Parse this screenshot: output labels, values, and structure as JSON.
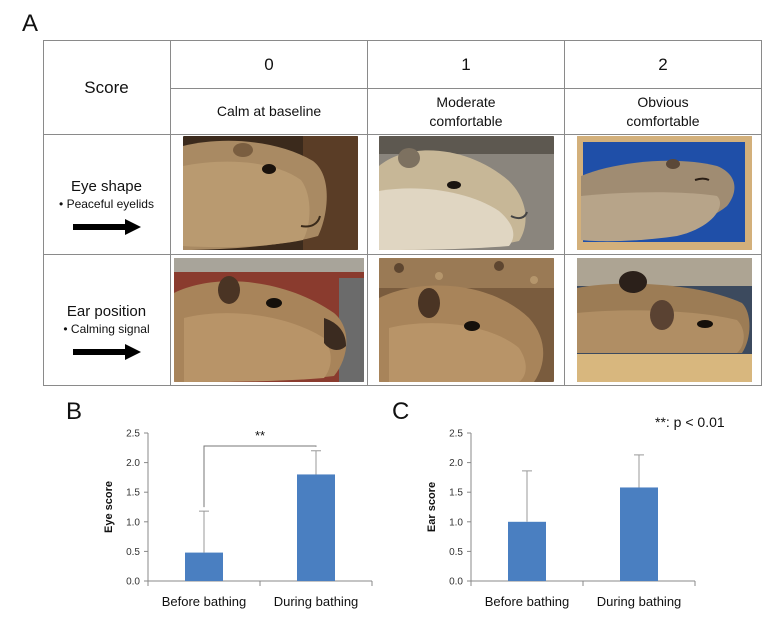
{
  "panels": {
    "a": "A",
    "b": "B",
    "c": "C"
  },
  "table": {
    "score_header": "Score",
    "columns": [
      {
        "score": "0",
        "desc_line1": "Calm at baseline",
        "desc_line2": ""
      },
      {
        "score": "1",
        "desc_line1": "Moderate",
        "desc_line2": "comfortable"
      },
      {
        "score": "2",
        "desc_line1": "Obvious",
        "desc_line2": "comfortable"
      }
    ],
    "rows": [
      {
        "title": "Eye shape",
        "sub": "• Peaceful eyelids"
      },
      {
        "title": "Ear position",
        "sub": "• Calming signal"
      }
    ]
  },
  "significance_note": "**: p < 0.01",
  "chart_data": [
    {
      "type": "bar",
      "panel": "B",
      "categories": [
        "Before bathing",
        "During bathing"
      ],
      "values": [
        0.48,
        1.8
      ],
      "error_upper": [
        0.7,
        0.4
      ],
      "ylabel": "Eye score",
      "ylim": [
        0,
        2.5
      ],
      "yticks": [
        "0.0",
        "0.5",
        "1.0",
        "1.5",
        "2.0",
        "2.5"
      ],
      "annotation": "**",
      "bar_color": "#4a7fc1",
      "grid": false
    },
    {
      "type": "bar",
      "panel": "C",
      "categories": [
        "Before bathing",
        "During bathing"
      ],
      "values": [
        1.0,
        1.58
      ],
      "error_upper": [
        0.86,
        0.55
      ],
      "ylabel": "Ear score",
      "ylim": [
        0,
        2.5
      ],
      "yticks": [
        "0.0",
        "0.5",
        "1.0",
        "1.5",
        "2.0",
        "2.5"
      ],
      "bar_color": "#4a7fc1",
      "grid": false
    }
  ]
}
